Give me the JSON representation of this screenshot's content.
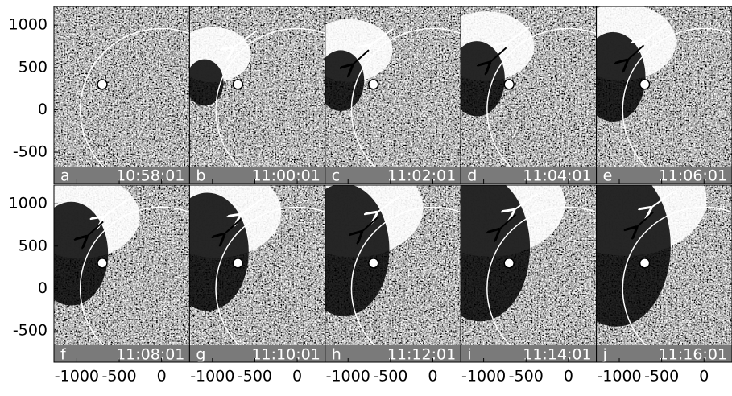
{
  "axes": {
    "xlim": [
      -1270,
      330
    ],
    "ylim": [
      -870,
      1220
    ],
    "xticks": [
      -1000,
      -500,
      0
    ],
    "yticks": [
      1000,
      500,
      0,
      -500
    ]
  },
  "panels": [
    {
      "label": "a",
      "time": "10:58:01"
    },
    {
      "label": "b",
      "time": "11:00:01"
    },
    {
      "label": "c",
      "time": "11:02:01"
    },
    {
      "label": "d",
      "time": "11:04:01"
    },
    {
      "label": "e",
      "time": "11:06:01"
    },
    {
      "label": "f",
      "time": "11:08:01"
    },
    {
      "label": "g",
      "time": "11:10:01"
    },
    {
      "label": "h",
      "time": "11:12:01"
    },
    {
      "label": "i",
      "time": "11:14:01"
    },
    {
      "label": "j",
      "time": "11:16:01"
    }
  ]
}
